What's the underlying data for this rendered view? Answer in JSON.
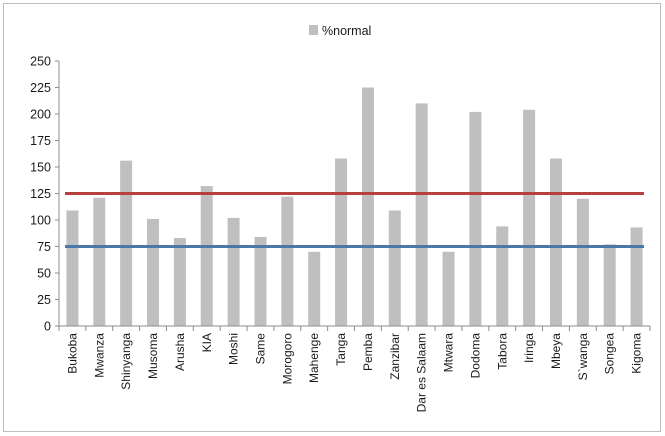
{
  "chart_data": {
    "type": "bar",
    "categories": [
      "Bukoba",
      "Mwanza",
      "Shinyanga",
      "Musoma",
      "Arusha",
      "KIA",
      "Moshi",
      "Same",
      "Morogoro",
      "Mahenge",
      "Tanga",
      "Pemba",
      "Zanzibar",
      "Dar es Salaam",
      "Mtwara",
      "Dodoma",
      "Tabora",
      "Iringa",
      "Mbeya",
      "S`wanga",
      "Songea",
      "Kigoma"
    ],
    "series": [
      {
        "name": "%normal",
        "values": [
          109,
          121,
          156,
          101,
          83,
          132,
          102,
          84,
          122,
          70,
          158,
          225,
          109,
          210,
          70,
          202,
          94,
          204,
          158,
          120,
          77,
          93
        ],
        "color": "#bfbfbf"
      }
    ],
    "reference_lines": [
      {
        "value": 125,
        "color": "#b5403e"
      },
      {
        "value": 75,
        "color": "#4a78a8"
      }
    ],
    "y_ticks": [
      0,
      25,
      50,
      75,
      100,
      125,
      150,
      175,
      200,
      225,
      250
    ],
    "ylim": [
      0,
      250
    ],
    "title": "",
    "xlabel": "",
    "ylabel": "",
    "grid": false,
    "legend_position": "top-center"
  }
}
